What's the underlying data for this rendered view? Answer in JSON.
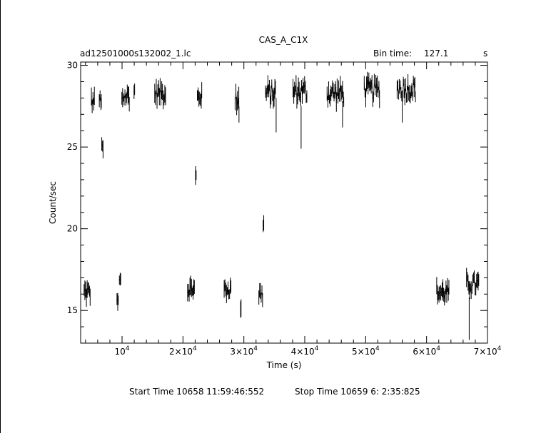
{
  "header": {
    "title": "CAS_A_C1X",
    "file_name": "ad12501000s132002_1.lc",
    "bin_time_label": "Bin time:",
    "bin_time_value": "127.1",
    "bin_time_unit": "s"
  },
  "footer": {
    "start_time": "Start Time 10658 11:59:46:552",
    "stop_time": "Stop Time 10659  6: 2:35:825"
  },
  "chart_data": {
    "type": "scatter",
    "title": "CAS_A_C1X",
    "xlabel": "Time (s)",
    "ylabel": "Count/sec",
    "xlim": [
      3200,
      70000
    ],
    "ylim": [
      13,
      30.2
    ],
    "yticks": [
      {
        "value": 15,
        "label": "15"
      },
      {
        "value": 20,
        "label": "20"
      },
      {
        "value": 25,
        "label": "25"
      },
      {
        "value": 30,
        "label": "30"
      }
    ],
    "xticks": [
      {
        "value": 10000,
        "mant": "10",
        "exp": "4"
      },
      {
        "value": 20000,
        "mant": "2×10",
        "exp": "4"
      },
      {
        "value": 30000,
        "mant": "3×10",
        "exp": "4"
      },
      {
        "value": 40000,
        "mant": "4×10",
        "exp": "4"
      },
      {
        "value": 50000,
        "mant": "5×10",
        "exp": "4"
      },
      {
        "value": 60000,
        "mant": "6×10",
        "exp": "4"
      },
      {
        "value": 70000,
        "mant": "7×10",
        "exp": "4"
      }
    ],
    "segments": [
      {
        "x0": 3700,
        "x1": 4800,
        "y": 16.1,
        "spread": 0.5
      },
      {
        "x0": 4900,
        "x1": 5500,
        "y": 27.8,
        "spread": 0.4
      },
      {
        "x0": 6200,
        "x1": 6600,
        "y": 27.9,
        "spread": 0.4
      },
      {
        "x0": 6600,
        "x1": 6900,
        "y": 24.9,
        "spread": 0.3
      },
      {
        "x0": 9100,
        "x1": 9400,
        "y": 15.5,
        "spread": 0.3
      },
      {
        "x0": 9500,
        "x1": 9800,
        "y": 16.8,
        "spread": 0.3
      },
      {
        "x0": 9900,
        "x1": 11200,
        "y": 28.1,
        "spread": 0.5
      },
      {
        "x0": 11900,
        "x1": 12100,
        "y": 28.4,
        "spread": 0.4
      },
      {
        "x0": 15300,
        "x1": 17200,
        "y": 28.3,
        "spread": 0.5
      },
      {
        "x0": 20700,
        "x1": 21900,
        "y": 16.3,
        "spread": 0.4
      },
      {
        "x0": 22000,
        "x1": 22200,
        "y": 23.1,
        "spread": 0.5
      },
      {
        "x0": 22300,
        "x1": 23100,
        "y": 28.1,
        "spread": 0.4
      },
      {
        "x0": 26700,
        "x1": 27900,
        "y": 16.3,
        "spread": 0.4
      },
      {
        "x0": 28500,
        "x1": 29200,
        "y": 28.0,
        "spread": 0.6
      },
      {
        "x0": 29400,
        "x1": 29550,
        "y": 15.5,
        "spread": 0.9
      },
      {
        "x0": 32400,
        "x1": 33100,
        "y": 16.0,
        "spread": 0.5
      },
      {
        "x0": 33100,
        "x1": 33300,
        "y": 20.2,
        "spread": 0.4
      },
      {
        "x0": 33500,
        "x1": 35200,
        "y": 28.3,
        "spread": 0.6
      },
      {
        "x0": 38000,
        "x1": 40400,
        "y": 28.4,
        "spread": 0.6
      },
      {
        "x0": 43600,
        "x1": 46400,
        "y": 28.3,
        "spread": 0.6
      },
      {
        "x0": 49700,
        "x1": 52300,
        "y": 28.5,
        "spread": 0.6
      },
      {
        "x0": 55100,
        "x1": 58200,
        "y": 28.6,
        "spread": 0.6
      },
      {
        "x0": 61600,
        "x1": 63700,
        "y": 16.1,
        "spread": 0.5
      },
      {
        "x0": 66500,
        "x1": 68600,
        "y": 16.6,
        "spread": 0.5
      }
    ],
    "dips": [
      {
        "x": 35300,
        "y0": 28.0,
        "y1": 25.9
      },
      {
        "x": 39400,
        "y0": 27.5,
        "y1": 24.9
      },
      {
        "x": 56000,
        "y0": 28.0,
        "y1": 26.5
      },
      {
        "x": 46200,
        "y0": 27.8,
        "y1": 26.2
      },
      {
        "x": 29200,
        "y0": 27.5,
        "y1": 26.5
      },
      {
        "x": 67000,
        "y0": 15.8,
        "y1": 13.2
      }
    ]
  }
}
